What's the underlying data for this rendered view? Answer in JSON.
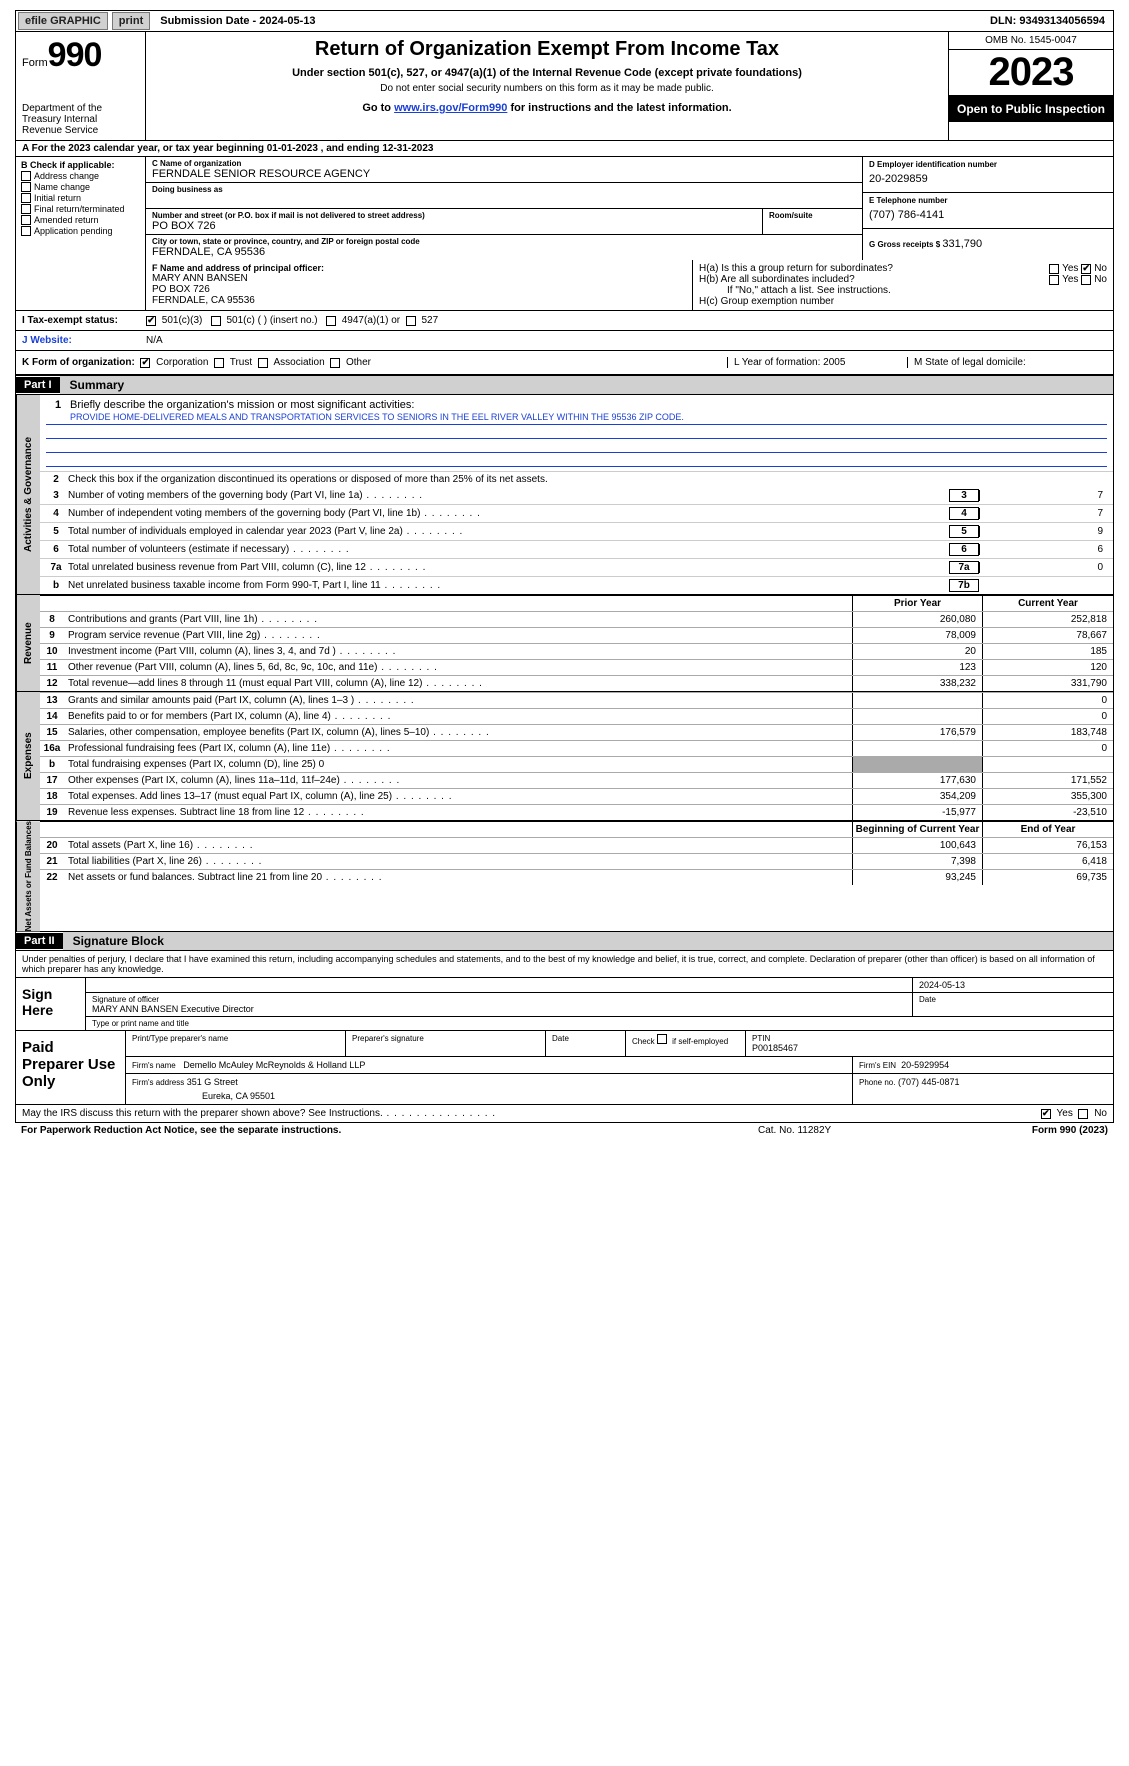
{
  "topbar": {
    "efile": "efile GRAPHIC",
    "print": "print",
    "subdate_label": "Submission Date - ",
    "subdate": "2024-05-13",
    "dln_label": "DLN: ",
    "dln": "93493134056594"
  },
  "header": {
    "form_word": "Form",
    "form_num": "990",
    "dept": "Department of the Treasury Internal Revenue Service",
    "title": "Return of Organization Exempt From Income Tax",
    "sub1": "Under section 501(c), 527, or 4947(a)(1) of the Internal Revenue Code (except private foundations)",
    "sub2": "Do not enter social security numbers on this form as it may be made public.",
    "sub3_pre": "Go to ",
    "sub3_link": "www.irs.gov/Form990",
    "sub3_post": " for instructions and the latest information.",
    "omb": "OMB No. 1545-0047",
    "year": "2023",
    "open": "Open to Public Inspection"
  },
  "rowA": "A For the 2023 calendar year, or tax year beginning 01-01-2023   , and ending 12-31-2023",
  "colB": {
    "label": "B Check if applicable:",
    "items": [
      "Address change",
      "Name change",
      "Initial return",
      "Final return/terminated",
      "Amended return",
      "Application pending"
    ]
  },
  "colC": {
    "name_label": "C Name of organization",
    "name": "FERNDALE SENIOR RESOURCE AGENCY",
    "dba_label": "Doing business as",
    "addr_label": "Number and street (or P.O. box if mail is not delivered to street address)",
    "addr": "PO BOX 726",
    "room_label": "Room/suite",
    "city_label": "City or town, state or province, country, and ZIP or foreign postal code",
    "city": "FERNDALE, CA  95536"
  },
  "colD": {
    "ein_label": "D Employer identification number",
    "ein": "20-2029859",
    "phone_label": "E Telephone number",
    "phone": "(707) 786-4141",
    "gross_label": "G Gross receipts $ ",
    "gross": "331,790"
  },
  "rowF": {
    "label": "F  Name and address of principal officer:",
    "name": "MARY ANN BANSEN",
    "addr": "PO BOX 726",
    "city": "FERNDALE, CA  95536"
  },
  "rowH": {
    "ha": "H(a)  Is this a group return for subordinates?",
    "hb": "H(b)  Are all subordinates included?",
    "hb_note": "If \"No,\" attach a list. See instructions.",
    "hc": "H(c)  Group exemption number",
    "yes": "Yes",
    "no": "No"
  },
  "rowI": {
    "label": "I   Tax-exempt status:",
    "o1": "501(c)(3)",
    "o2": "501(c) (  ) (insert no.)",
    "o3": "4947(a)(1) or",
    "o4": "527"
  },
  "rowJ": {
    "label": "J   Website:",
    "val": "N/A"
  },
  "rowK": {
    "label": "K Form of organization:",
    "o1": "Corporation",
    "o2": "Trust",
    "o3": "Association",
    "o4": "Other",
    "L": "L Year of formation: 2005",
    "M": "M State of legal domicile:"
  },
  "part1": {
    "num": "Part I",
    "title": "Summary"
  },
  "governance": {
    "q1": "Briefly describe the organization's mission or most significant activities:",
    "mission": "PROVIDE HOME-DELIVERED MEALS AND TRANSPORTATION SERVICES TO SENIORS IN THE EEL RIVER VALLEY WITHIN THE 95536 ZIP CODE.",
    "q2": "Check this box      if the organization discontinued its operations or disposed of more than 25% of its net assets.",
    "lines": [
      {
        "n": "3",
        "d": "Number of voting members of the governing body (Part VI, line 1a)",
        "box": "3",
        "v": "7"
      },
      {
        "n": "4",
        "d": "Number of independent voting members of the governing body (Part VI, line 1b)",
        "box": "4",
        "v": "7"
      },
      {
        "n": "5",
        "d": "Total number of individuals employed in calendar year 2023 (Part V, line 2a)",
        "box": "5",
        "v": "9"
      },
      {
        "n": "6",
        "d": "Total number of volunteers (estimate if necessary)",
        "box": "6",
        "v": "6"
      },
      {
        "n": "7a",
        "d": "Total unrelated business revenue from Part VIII, column (C), line 12",
        "box": "7a",
        "v": "0"
      },
      {
        "n": "b",
        "d": "Net unrelated business taxable income from Form 990-T, Part I, line 11",
        "box": "7b",
        "v": ""
      }
    ]
  },
  "col_headers": {
    "prior": "Prior Year",
    "current": "Current Year",
    "begin": "Beginning of Current Year",
    "end": "End of Year"
  },
  "revenue": [
    {
      "n": "8",
      "d": "Contributions and grants (Part VIII, line 1h)",
      "p": "260,080",
      "c": "252,818"
    },
    {
      "n": "9",
      "d": "Program service revenue (Part VIII, line 2g)",
      "p": "78,009",
      "c": "78,667"
    },
    {
      "n": "10",
      "d": "Investment income (Part VIII, column (A), lines 3, 4, and 7d )",
      "p": "20",
      "c": "185"
    },
    {
      "n": "11",
      "d": "Other revenue (Part VIII, column (A), lines 5, 6d, 8c, 9c, 10c, and 11e)",
      "p": "123",
      "c": "120"
    },
    {
      "n": "12",
      "d": "Total revenue—add lines 8 through 11 (must equal Part VIII, column (A), line 12)",
      "p": "338,232",
      "c": "331,790"
    }
  ],
  "expenses": [
    {
      "n": "13",
      "d": "Grants and similar amounts paid (Part IX, column (A), lines 1–3 )",
      "p": "",
      "c": "0"
    },
    {
      "n": "14",
      "d": "Benefits paid to or for members (Part IX, column (A), line 4)",
      "p": "",
      "c": "0"
    },
    {
      "n": "15",
      "d": "Salaries, other compensation, employee benefits (Part IX, column (A), lines 5–10)",
      "p": "176,579",
      "c": "183,748"
    },
    {
      "n": "16a",
      "d": "Professional fundraising fees (Part IX, column (A), line 11e)",
      "p": "",
      "c": "0"
    },
    {
      "n": "b",
      "d": "Total fundraising expenses (Part IX, column (D), line 25) 0",
      "p": "",
      "c": "",
      "shade": true
    },
    {
      "n": "17",
      "d": "Other expenses (Part IX, column (A), lines 11a–11d, 11f–24e)",
      "p": "177,630",
      "c": "171,552"
    },
    {
      "n": "18",
      "d": "Total expenses. Add lines 13–17 (must equal Part IX, column (A), line 25)",
      "p": "354,209",
      "c": "355,300"
    },
    {
      "n": "19",
      "d": "Revenue less expenses. Subtract line 18 from line 12",
      "p": "-15,977",
      "c": "-23,510"
    }
  ],
  "netassets": [
    {
      "n": "20",
      "d": "Total assets (Part X, line 16)",
      "p": "100,643",
      "c": "76,153"
    },
    {
      "n": "21",
      "d": "Total liabilities (Part X, line 26)",
      "p": "7,398",
      "c": "6,418"
    },
    {
      "n": "22",
      "d": "Net assets or fund balances. Subtract line 21 from line 20",
      "p": "93,245",
      "c": "69,735"
    }
  ],
  "part2": {
    "num": "Part II",
    "title": "Signature Block"
  },
  "penalty": "Under penalties of perjury, I declare that I have examined this return, including accompanying schedules and statements, and to the best of my knowledge and belief, it is true, correct, and complete. Declaration of preparer (other than officer) is based on all information of which preparer has any knowledge.",
  "sign": {
    "label": "Sign Here",
    "sig_label": "Signature of officer",
    "name": "MARY ANN BANSEN  Executive Director",
    "type_label": "Type or print name and title",
    "date_label": "Date",
    "date": "2024-05-13"
  },
  "paid": {
    "label": "Paid Preparer Use Only",
    "h1": "Print/Type preparer's name",
    "h2": "Preparer's signature",
    "h3": "Date",
    "h4_pre": "Check",
    "h4_post": "if self-employed",
    "h5": "PTIN",
    "ptin": "P00185467",
    "firm_label": "Firm's name",
    "firm": "Demello McAuley McReynolds & Holland LLP",
    "ein_label": "Firm's EIN",
    "ein": "20-5929954",
    "addr_label": "Firm's address",
    "addr1": "351 G Street",
    "addr2": "Eureka, CA  95501",
    "phone_label": "Phone no.",
    "phone": "(707) 445-0871"
  },
  "footer": {
    "q": "May the IRS discuss this return with the preparer shown above? See Instructions.",
    "yes": "Yes",
    "no": "No"
  },
  "bottom": {
    "pra": "For Paperwork Reduction Act Notice, see the separate instructions.",
    "cat": "Cat. No. 11282Y",
    "form": "Form 990 (2023)"
  },
  "vtabs": {
    "gov": "Activities & Governance",
    "rev": "Revenue",
    "exp": "Expenses",
    "net": "Net Assets or Fund Balances"
  },
  "colors": {
    "link": "#1a3fd6",
    "shade": "#d0d0d0"
  }
}
